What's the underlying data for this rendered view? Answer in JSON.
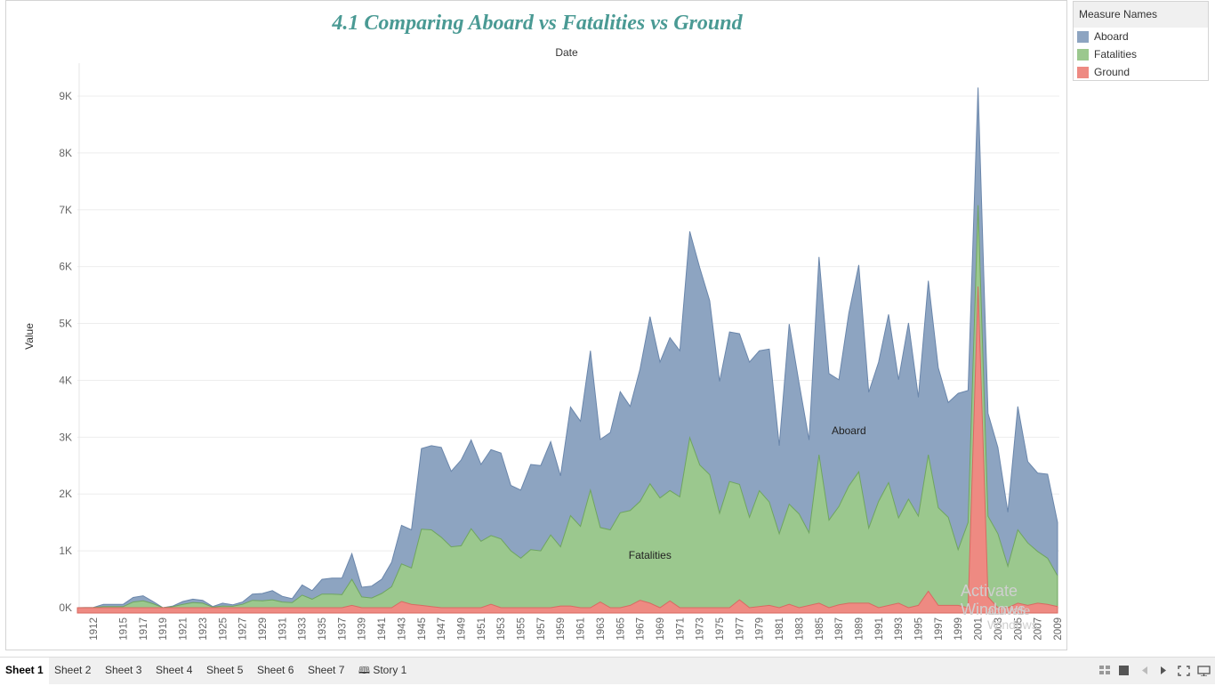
{
  "chart_data": {
    "type": "area",
    "title": "4.1 Comparing Aboard vs Fatalities vs Ground",
    "xlabel": "Date",
    "ylabel": "Value",
    "ylim": [
      0,
      9300
    ],
    "yticks": [
      0,
      1000,
      2000,
      3000,
      4000,
      5000,
      6000,
      7000,
      8000,
      9000
    ],
    "ytick_labels": [
      "0K",
      "1K",
      "2K",
      "3K",
      "4K",
      "5K",
      "6K",
      "7K",
      "8K",
      "9K"
    ],
    "xtick_labels": [
      "1912",
      "1915",
      "1917",
      "1919",
      "1921",
      "1923",
      "1925",
      "1927",
      "1929",
      "1931",
      "1933",
      "1935",
      "1937",
      "1939",
      "1941",
      "1943",
      "1945",
      "1947",
      "1949",
      "1951",
      "1953",
      "1955",
      "1957",
      "1959",
      "1961",
      "1963",
      "1965",
      "1967",
      "1969",
      "1971",
      "1973",
      "1975",
      "1977",
      "1979",
      "1981",
      "1983",
      "1985",
      "1987",
      "1989",
      "1991",
      "1993",
      "1995",
      "1997",
      "1999",
      "2001",
      "2003",
      "2005",
      "2007",
      "2009"
    ],
    "grid": true,
    "legend_position": "top-right",
    "stacked": false,
    "series": [
      {
        "name": "Aboard",
        "color": "#8da4c1",
        "line_color": "#6a86ab",
        "points": [
          [
            1908,
            0
          ],
          [
            1912,
            5
          ],
          [
            1913,
            60
          ],
          [
            1915,
            60
          ],
          [
            1916,
            180
          ],
          [
            1917,
            210
          ],
          [
            1918,
            110
          ],
          [
            1919,
            0
          ],
          [
            1920,
            30
          ],
          [
            1921,
            110
          ],
          [
            1922,
            150
          ],
          [
            1923,
            130
          ],
          [
            1924,
            20
          ],
          [
            1925,
            80
          ],
          [
            1926,
            50
          ],
          [
            1927,
            100
          ],
          [
            1928,
            240
          ],
          [
            1929,
            250
          ],
          [
            1930,
            300
          ],
          [
            1931,
            200
          ],
          [
            1932,
            160
          ],
          [
            1933,
            400
          ],
          [
            1934,
            300
          ],
          [
            1935,
            500
          ],
          [
            1936,
            520
          ],
          [
            1937,
            520
          ],
          [
            1938,
            950
          ],
          [
            1939,
            360
          ],
          [
            1940,
            380
          ],
          [
            1941,
            500
          ],
          [
            1942,
            800
          ],
          [
            1943,
            1450
          ],
          [
            1944,
            1370
          ],
          [
            1945,
            2800
          ],
          [
            1946,
            2850
          ],
          [
            1947,
            2820
          ],
          [
            1948,
            2400
          ],
          [
            1949,
            2600
          ],
          [
            1950,
            2950
          ],
          [
            1951,
            2520
          ],
          [
            1952,
            2780
          ],
          [
            1953,
            2720
          ],
          [
            1954,
            2150
          ],
          [
            1955,
            2070
          ],
          [
            1956,
            2520
          ],
          [
            1957,
            2500
          ],
          [
            1958,
            2920
          ],
          [
            1959,
            2320
          ],
          [
            1960,
            3530
          ],
          [
            1961,
            3280
          ],
          [
            1962,
            4520
          ],
          [
            1963,
            2960
          ],
          [
            1964,
            3080
          ],
          [
            1965,
            3800
          ],
          [
            1966,
            3540
          ],
          [
            1967,
            4200
          ],
          [
            1968,
            5120
          ],
          [
            1969,
            4320
          ],
          [
            1970,
            4750
          ],
          [
            1971,
            4520
          ],
          [
            1972,
            6620
          ],
          [
            1973,
            5980
          ],
          [
            1974,
            5400
          ],
          [
            1975,
            3980
          ],
          [
            1976,
            4850
          ],
          [
            1977,
            4820
          ],
          [
            1978,
            4320
          ],
          [
            1979,
            4520
          ],
          [
            1980,
            4550
          ],
          [
            1981,
            2850
          ],
          [
            1982,
            4990
          ],
          [
            1983,
            3950
          ],
          [
            1984,
            2950
          ],
          [
            1985,
            6170
          ],
          [
            1986,
            4120
          ],
          [
            1987,
            4010
          ],
          [
            1988,
            5180
          ],
          [
            1989,
            6030
          ],
          [
            1990,
            3790
          ],
          [
            1991,
            4320
          ],
          [
            1992,
            5160
          ],
          [
            1993,
            4010
          ],
          [
            1994,
            5010
          ],
          [
            1995,
            3700
          ],
          [
            1996,
            5750
          ],
          [
            1997,
            4220
          ],
          [
            1998,
            3610
          ],
          [
            1999,
            3770
          ],
          [
            2000,
            3820
          ],
          [
            2001,
            9150
          ],
          [
            2002,
            3420
          ],
          [
            2003,
            2820
          ],
          [
            2004,
            1680
          ],
          [
            2005,
            3540
          ],
          [
            2006,
            2570
          ],
          [
            2007,
            2370
          ],
          [
            2008,
            2350
          ],
          [
            2009,
            1500
          ]
        ]
      },
      {
        "name": "Fatalities",
        "color": "#9bc88e",
        "line_color": "#6fa560",
        "points": [
          [
            1908,
            0
          ],
          [
            1912,
            5
          ],
          [
            1913,
            20
          ],
          [
            1915,
            20
          ],
          [
            1916,
            100
          ],
          [
            1917,
            120
          ],
          [
            1918,
            70
          ],
          [
            1919,
            0
          ],
          [
            1920,
            20
          ],
          [
            1921,
            60
          ],
          [
            1922,
            90
          ],
          [
            1923,
            80
          ],
          [
            1924,
            10
          ],
          [
            1925,
            30
          ],
          [
            1926,
            25
          ],
          [
            1927,
            60
          ],
          [
            1928,
            130
          ],
          [
            1929,
            120
          ],
          [
            1930,
            140
          ],
          [
            1931,
            100
          ],
          [
            1932,
            90
          ],
          [
            1933,
            220
          ],
          [
            1934,
            150
          ],
          [
            1935,
            240
          ],
          [
            1936,
            240
          ],
          [
            1937,
            230
          ],
          [
            1938,
            500
          ],
          [
            1939,
            190
          ],
          [
            1940,
            170
          ],
          [
            1941,
            250
          ],
          [
            1942,
            370
          ],
          [
            1943,
            770
          ],
          [
            1944,
            700
          ],
          [
            1945,
            1380
          ],
          [
            1946,
            1370
          ],
          [
            1947,
            1240
          ],
          [
            1948,
            1070
          ],
          [
            1949,
            1090
          ],
          [
            1950,
            1390
          ],
          [
            1951,
            1170
          ],
          [
            1952,
            1270
          ],
          [
            1953,
            1210
          ],
          [
            1954,
            1000
          ],
          [
            1955,
            870
          ],
          [
            1956,
            1020
          ],
          [
            1957,
            1000
          ],
          [
            1958,
            1280
          ],
          [
            1959,
            1070
          ],
          [
            1960,
            1620
          ],
          [
            1961,
            1430
          ],
          [
            1962,
            2070
          ],
          [
            1963,
            1410
          ],
          [
            1964,
            1370
          ],
          [
            1965,
            1670
          ],
          [
            1966,
            1710
          ],
          [
            1967,
            1870
          ],
          [
            1968,
            2180
          ],
          [
            1969,
            1930
          ],
          [
            1970,
            2060
          ],
          [
            1971,
            1950
          ],
          [
            1972,
            2990
          ],
          [
            1973,
            2510
          ],
          [
            1974,
            2340
          ],
          [
            1975,
            1660
          ],
          [
            1976,
            2220
          ],
          [
            1977,
            2170
          ],
          [
            1978,
            1590
          ],
          [
            1979,
            2060
          ],
          [
            1980,
            1860
          ],
          [
            1981,
            1300
          ],
          [
            1982,
            1820
          ],
          [
            1983,
            1650
          ],
          [
            1984,
            1320
          ],
          [
            1985,
            2690
          ],
          [
            1986,
            1540
          ],
          [
            1987,
            1780
          ],
          [
            1988,
            2140
          ],
          [
            1989,
            2390
          ],
          [
            1990,
            1400
          ],
          [
            1991,
            1870
          ],
          [
            1992,
            2200
          ],
          [
            1993,
            1580
          ],
          [
            1994,
            1910
          ],
          [
            1995,
            1610
          ],
          [
            1996,
            2690
          ],
          [
            1997,
            1760
          ],
          [
            1998,
            1590
          ],
          [
            1999,
            1020
          ],
          [
            2000,
            1500
          ],
          [
            2001,
            7080
          ],
          [
            2002,
            1610
          ],
          [
            2003,
            1300
          ],
          [
            2004,
            730
          ],
          [
            2005,
            1370
          ],
          [
            2006,
            1140
          ],
          [
            2007,
            990
          ],
          [
            2008,
            870
          ],
          [
            2009,
            560
          ]
        ]
      },
      {
        "name": "Ground",
        "color": "#ee8a82",
        "line_color": "#d86a62",
        "points": [
          [
            1908,
            0
          ],
          [
            1937,
            0
          ],
          [
            1938,
            40
          ],
          [
            1939,
            0
          ],
          [
            1942,
            0
          ],
          [
            1943,
            110
          ],
          [
            1944,
            60
          ],
          [
            1945,
            40
          ],
          [
            1946,
            20
          ],
          [
            1947,
            0
          ],
          [
            1951,
            0
          ],
          [
            1952,
            60
          ],
          [
            1953,
            0
          ],
          [
            1958,
            0
          ],
          [
            1959,
            30
          ],
          [
            1960,
            30
          ],
          [
            1961,
            0
          ],
          [
            1962,
            0
          ],
          [
            1963,
            100
          ],
          [
            1964,
            0
          ],
          [
            1965,
            0
          ],
          [
            1966,
            40
          ],
          [
            1967,
            130
          ],
          [
            1968,
            80
          ],
          [
            1969,
            0
          ],
          [
            1970,
            120
          ],
          [
            1971,
            0
          ],
          [
            1975,
            0
          ],
          [
            1976,
            0
          ],
          [
            1977,
            140
          ],
          [
            1978,
            0
          ],
          [
            1980,
            40
          ],
          [
            1981,
            0
          ],
          [
            1982,
            60
          ],
          [
            1983,
            0
          ],
          [
            1985,
            80
          ],
          [
            1986,
            0
          ],
          [
            1987,
            50
          ],
          [
            1988,
            80
          ],
          [
            1989,
            80
          ],
          [
            1990,
            80
          ],
          [
            1991,
            0
          ],
          [
            1993,
            80
          ],
          [
            1994,
            0
          ],
          [
            1995,
            40
          ],
          [
            1996,
            290
          ],
          [
            1997,
            40
          ],
          [
            1998,
            40
          ],
          [
            1999,
            40
          ],
          [
            2000,
            0
          ],
          [
            2001,
            5650
          ],
          [
            2002,
            190
          ],
          [
            2003,
            0
          ],
          [
            2004,
            0
          ],
          [
            2005,
            80
          ],
          [
            2006,
            40
          ],
          [
            2007,
            80
          ],
          [
            2008,
            60
          ],
          [
            2009,
            20
          ]
        ]
      }
    ],
    "annotations": [
      {
        "text": "Aboard",
        "x": 1988,
        "y": 3050
      },
      {
        "text": "Fatalities",
        "x": 1968,
        "y": 860
      }
    ]
  },
  "legend": {
    "title": "Measure Names",
    "items": [
      {
        "label": "Aboard",
        "color": "#8da4c1"
      },
      {
        "label": "Fatalities",
        "color": "#9bc88e"
      },
      {
        "label": "Ground",
        "color": "#ee8a82"
      }
    ]
  },
  "tabs": [
    "Sheet 1",
    "Sheet 2",
    "Sheet 3",
    "Sheet 4",
    "Sheet 5",
    "Sheet 6",
    "Sheet 7",
    "Story 1"
  ],
  "active_tab": "Sheet 1",
  "watermark": {
    "line1": "Activate Windows",
    "line2": "activate Windows."
  }
}
